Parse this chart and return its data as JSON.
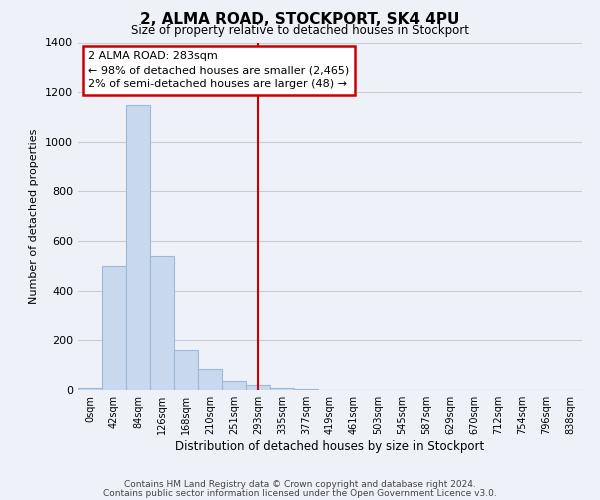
{
  "title": "2, ALMA ROAD, STOCKPORT, SK4 4PU",
  "subtitle": "Size of property relative to detached houses in Stockport",
  "xlabel": "Distribution of detached houses by size in Stockport",
  "ylabel": "Number of detached properties",
  "bar_labels": [
    "0sqm",
    "42sqm",
    "84sqm",
    "126sqm",
    "168sqm",
    "210sqm",
    "251sqm",
    "293sqm",
    "335sqm",
    "377sqm",
    "419sqm",
    "461sqm",
    "503sqm",
    "545sqm",
    "587sqm",
    "629sqm",
    "670sqm",
    "712sqm",
    "754sqm",
    "796sqm",
    "838sqm"
  ],
  "bar_heights": [
    10,
    500,
    1150,
    540,
    160,
    85,
    35,
    20,
    10,
    5,
    0,
    0,
    0,
    0,
    0,
    0,
    0,
    0,
    0,
    0,
    0
  ],
  "bar_color": "#c8d9ee",
  "bar_edge_color": "#a0b8d8",
  "vline_x_index": 7,
  "vline_color": "#cc0000",
  "annotation_line1": "2 ALMA ROAD: 283sqm",
  "annotation_line2": "← 98% of detached houses are smaller (2,465)",
  "annotation_line3": "2% of semi-detached houses are larger (48) →",
  "annotation_box_edge_color": "#cc0000",
  "ylim": [
    0,
    1400
  ],
  "yticks": [
    0,
    200,
    400,
    600,
    800,
    1000,
    1200,
    1400
  ],
  "grid_color": "#cccccc",
  "background_color": "#eef2f8",
  "footer_line1": "Contains HM Land Registry data © Crown copyright and database right 2024.",
  "footer_line2": "Contains public sector information licensed under the Open Government Licence v3.0."
}
